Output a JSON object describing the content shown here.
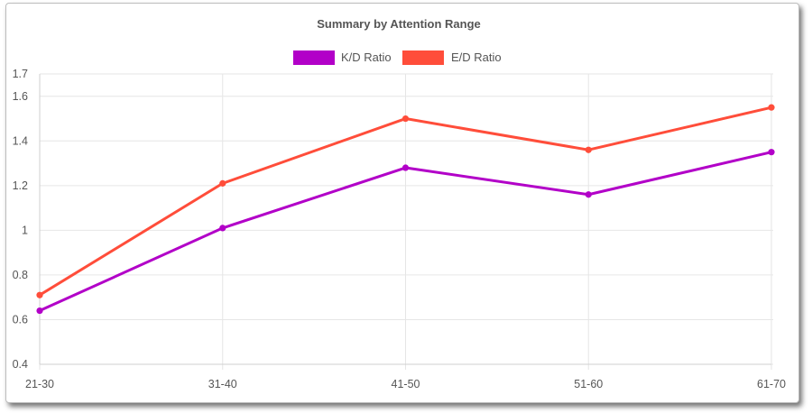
{
  "chart_data": {
    "type": "line",
    "title": "Summary by Attention Range",
    "categories": [
      "21-30",
      "31-40",
      "41-50",
      "51-60",
      "61-70"
    ],
    "series": [
      {
        "name": "K/D Ratio",
        "color": "#b200c8",
        "values": [
          0.64,
          1.01,
          1.28,
          1.16,
          1.35
        ]
      },
      {
        "name": "E/D Ratio",
        "color": "#ff4d3a",
        "values": [
          0.71,
          1.21,
          1.5,
          1.36,
          1.55
        ]
      }
    ],
    "y_ticks": [
      "0.4",
      "0.6",
      "0.8",
      "1",
      "1.2",
      "1.4",
      "1.6",
      "1.7"
    ],
    "ylim": [
      0.4,
      1.7
    ],
    "xlabel": "",
    "ylabel": "",
    "grid": true,
    "legend_position": "top-center"
  }
}
